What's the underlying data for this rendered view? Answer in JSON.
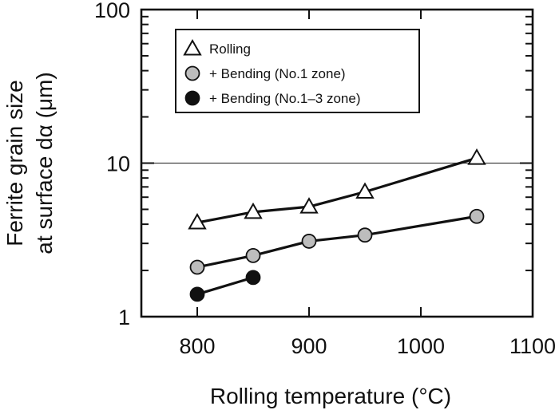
{
  "chart_data": {
    "type": "line",
    "title": "",
    "xlabel": "Rolling temperature (°C)",
    "ylabel_lines": [
      "Ferrite grain size",
      "at surface dα (μm)"
    ],
    "x_ticks": [
      800,
      900,
      1000,
      1100
    ],
    "y_ticks": [
      1,
      10,
      100
    ],
    "xlim": [
      750,
      1100
    ],
    "ylim": [
      1,
      100
    ],
    "y_scale": "log",
    "grid": false,
    "reference_line_y": 10,
    "legend_position": "top-left",
    "series": [
      {
        "name": "Rolling",
        "marker": "triangle-open",
        "x": [
          800,
          850,
          900,
          950,
          1050
        ],
        "y": [
          4.1,
          4.8,
          5.2,
          6.5,
          10.8
        ]
      },
      {
        "name": "+ Bending (No.1 zone)",
        "marker": "circle-gray",
        "x": [
          800,
          850,
          900,
          950,
          1050
        ],
        "y": [
          2.1,
          2.5,
          3.1,
          3.4,
          4.5
        ]
      },
      {
        "name": "+ Bending (No.1–3 zone)",
        "marker": "circle-black",
        "x": [
          800,
          850
        ],
        "y": [
          1.4,
          1.8
        ]
      }
    ]
  }
}
